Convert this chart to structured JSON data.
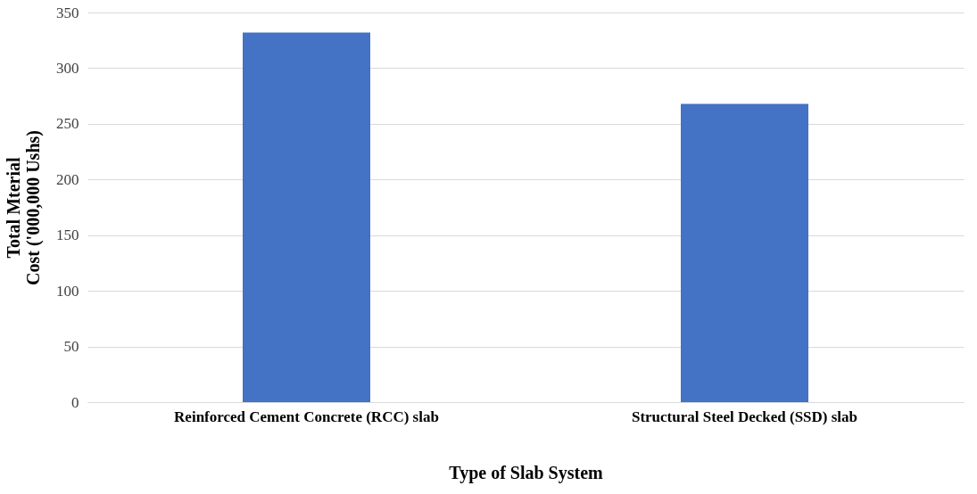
{
  "chart_data": {
    "type": "bar",
    "categories": [
      "Reinforced Cement Concrete (RCC) slab",
      "Structural Steel Decked (SSD) slab"
    ],
    "values": [
      332,
      268
    ],
    "color": "#4472c4",
    "ylabel": "Total Mterial\nCost ('000,000 Ushs)",
    "xlabel": "Type of Slab System",
    "ylim": [
      0,
      350
    ],
    "yticks": [
      0,
      50,
      100,
      150,
      200,
      250,
      300,
      350
    ],
    "grid": "y"
  }
}
